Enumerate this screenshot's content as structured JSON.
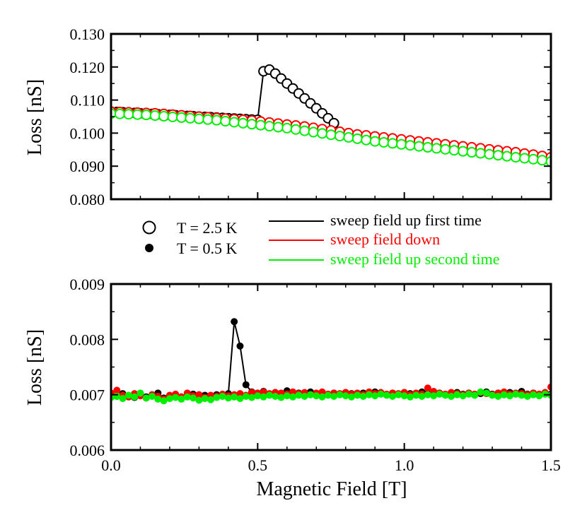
{
  "chart_data": [
    {
      "id": "top",
      "type": "scatter",
      "xlim": [
        0,
        1.5
      ],
      "ylim": [
        0.08,
        0.13
      ],
      "yticks": [
        "0.080",
        "0.090",
        "0.100",
        "0.110",
        "0.120",
        "0.130"
      ],
      "ylabel": "Loss [nS]",
      "xlabel": "",
      "marker": "open-circle",
      "series": [
        {
          "key": "up1",
          "color": "#000000",
          "x": [
            0.0,
            0.02,
            0.04,
            0.06,
            0.08,
            0.1,
            0.12,
            0.14,
            0.16,
            0.18,
            0.2,
            0.22,
            0.24,
            0.26,
            0.28,
            0.3,
            0.32,
            0.34,
            0.36,
            0.38,
            0.4,
            0.42,
            0.44,
            0.46,
            0.48,
            0.5,
            0.52,
            0.54,
            0.56,
            0.58,
            0.6,
            0.62,
            0.64,
            0.66,
            0.68,
            0.7,
            0.72,
            0.74,
            0.76
          ],
          "y": [
            0.1065,
            0.1064,
            0.1063,
            0.1062,
            0.1061,
            0.106,
            0.1059,
            0.1058,
            0.1057,
            0.1056,
            0.1055,
            0.1054,
            0.1053,
            0.1052,
            0.1051,
            0.105,
            0.1049,
            0.1048,
            0.1047,
            0.1046,
            0.1045,
            0.1044,
            0.1043,
            0.1042,
            0.1041,
            0.104,
            0.1187,
            0.1192,
            0.118,
            0.1165,
            0.115,
            0.1135,
            0.112,
            0.1105,
            0.109,
            0.1075,
            0.106,
            0.1045,
            0.103
          ]
        },
        {
          "key": "down",
          "color": "#ff0000",
          "x": [
            0.0,
            0.03,
            0.06,
            0.09,
            0.12,
            0.15,
            0.18,
            0.21,
            0.24,
            0.27,
            0.3,
            0.33,
            0.36,
            0.39,
            0.42,
            0.45,
            0.48,
            0.51,
            0.54,
            0.57,
            0.6,
            0.63,
            0.66,
            0.69,
            0.72,
            0.75,
            0.78,
            0.81,
            0.84,
            0.87,
            0.9,
            0.93,
            0.96,
            0.99,
            1.02,
            1.05,
            1.08,
            1.11,
            1.14,
            1.17,
            1.2,
            1.23,
            1.26,
            1.29,
            1.32,
            1.35,
            1.38,
            1.41,
            1.44,
            1.47,
            1.5
          ],
          "y": [
            0.1065,
            0.1064,
            0.1063,
            0.1062,
            0.1061,
            0.106,
            0.1058,
            0.1056,
            0.1054,
            0.1052,
            0.105,
            0.1048,
            0.1046,
            0.1044,
            0.1042,
            0.104,
            0.1038,
            0.1035,
            0.1032,
            0.1029,
            0.1026,
            0.1023,
            0.102,
            0.1016,
            0.1012,
            0.1008,
            0.1004,
            0.1,
            0.0996,
            0.0993,
            0.099,
            0.0987,
            0.0984,
            0.0981,
            0.0978,
            0.0975,
            0.0972,
            0.0969,
            0.0966,
            0.0963,
            0.096,
            0.0957,
            0.0954,
            0.0951,
            0.0948,
            0.0945,
            0.0942,
            0.0938,
            0.0935,
            0.0931,
            0.0927
          ]
        },
        {
          "key": "up2",
          "color": "#00ee00",
          "x": [
            0.0,
            0.03,
            0.06,
            0.09,
            0.12,
            0.15,
            0.18,
            0.21,
            0.24,
            0.27,
            0.3,
            0.33,
            0.36,
            0.39,
            0.42,
            0.45,
            0.48,
            0.51,
            0.54,
            0.57,
            0.6,
            0.63,
            0.66,
            0.69,
            0.72,
            0.75,
            0.78,
            0.81,
            0.84,
            0.87,
            0.9,
            0.93,
            0.96,
            0.99,
            1.02,
            1.05,
            1.08,
            1.11,
            1.14,
            1.17,
            1.2,
            1.23,
            1.26,
            1.29,
            1.32,
            1.35,
            1.38,
            1.41,
            1.44,
            1.47,
            1.5
          ],
          "y": [
            0.1059,
            0.1058,
            0.1057,
            0.1056,
            0.1055,
            0.1053,
            0.1051,
            0.1049,
            0.1047,
            0.1045,
            0.1043,
            0.1041,
            0.1039,
            0.1036,
            0.1033,
            0.103,
            0.1027,
            0.1024,
            0.1021,
            0.1018,
            0.1015,
            0.1011,
            0.1007,
            0.1003,
            0.0999,
            0.0995,
            0.0991,
            0.0987,
            0.0983,
            0.0979,
            0.0975,
            0.0972,
            0.0969,
            0.0966,
            0.0963,
            0.096,
            0.0957,
            0.0954,
            0.0951,
            0.0948,
            0.0945,
            0.0942,
            0.0939,
            0.0936,
            0.0933,
            0.093,
            0.0927,
            0.0924,
            0.0921,
            0.0918,
            0.0914
          ]
        }
      ]
    },
    {
      "id": "bottom",
      "type": "scatter",
      "xlim": [
        0,
        1.5
      ],
      "ylim": [
        0.006,
        0.009
      ],
      "xticks": [
        "0.0",
        "0.5",
        "1.0",
        "1.5"
      ],
      "yticks": [
        "0.006",
        "0.007",
        "0.008",
        "0.009"
      ],
      "ylabel": "Loss [nS]",
      "xlabel": "Magnetic Field [T]",
      "marker": "filled-circle",
      "series": [
        {
          "key": "up1",
          "color": "#000000",
          "x": [
            0.0,
            0.02,
            0.04,
            0.06,
            0.08,
            0.1,
            0.12,
            0.14,
            0.16,
            0.18,
            0.2,
            0.22,
            0.24,
            0.26,
            0.28,
            0.3,
            0.32,
            0.34,
            0.36,
            0.38,
            0.4,
            0.42,
            0.44,
            0.46,
            0.48,
            0.5,
            0.52,
            0.54,
            0.56,
            0.58,
            0.6,
            0.62,
            0.64,
            0.66,
            0.68,
            0.7,
            0.72,
            0.74,
            0.76,
            0.78,
            0.8,
            0.82,
            0.84,
            0.86,
            0.88,
            0.9,
            0.92,
            0.94,
            0.96,
            0.98,
            1.0,
            1.02,
            1.04,
            1.06,
            1.08,
            1.1,
            1.12,
            1.14,
            1.16,
            1.18,
            1.2,
            1.22,
            1.24,
            1.26,
            1.28,
            1.3,
            1.32,
            1.34,
            1.36,
            1.38,
            1.4,
            1.42,
            1.44,
            1.46,
            1.48,
            1.5
          ],
          "y": [
            0.007,
            0.00697,
            0.00702,
            0.00698,
            0.00695,
            0.00701,
            0.00696,
            0.00699,
            0.00703,
            0.00694,
            0.00697,
            0.007,
            0.00696,
            0.00698,
            0.00701,
            0.00695,
            0.00699,
            0.00697,
            0.007,
            0.00698,
            0.00702,
            0.00832,
            0.00788,
            0.00718,
            0.00705,
            0.00703,
            0.00706,
            0.00701,
            0.00704,
            0.00702,
            0.00707,
            0.007,
            0.00703,
            0.00701,
            0.00705,
            0.00702,
            0.00704,
            0.007,
            0.00703,
            0.00701,
            0.00704,
            0.00702,
            0.007,
            0.00703,
            0.00701,
            0.00705,
            0.00702,
            0.007,
            0.00703,
            0.00701,
            0.00704,
            0.00702,
            0.007,
            0.00705,
            0.00702,
            0.00701,
            0.00703,
            0.007,
            0.00702,
            0.00704,
            0.00701,
            0.00703,
            0.007,
            0.00702,
            0.00705,
            0.00701,
            0.00703,
            0.007,
            0.00704,
            0.00702,
            0.00706,
            0.00701,
            0.00703,
            0.007,
            0.00702,
            0.00701
          ]
        },
        {
          "key": "down",
          "color": "#ff0000",
          "x": [
            0.0,
            0.02,
            0.04,
            0.06,
            0.08,
            0.1,
            0.12,
            0.14,
            0.16,
            0.18,
            0.2,
            0.22,
            0.24,
            0.26,
            0.28,
            0.3,
            0.32,
            0.34,
            0.36,
            0.38,
            0.4,
            0.42,
            0.44,
            0.46,
            0.48,
            0.5,
            0.52,
            0.54,
            0.56,
            0.58,
            0.6,
            0.62,
            0.64,
            0.66,
            0.68,
            0.7,
            0.72,
            0.74,
            0.76,
            0.78,
            0.8,
            0.82,
            0.84,
            0.86,
            0.88,
            0.9,
            0.92,
            0.94,
            0.96,
            0.98,
            1.0,
            1.02,
            1.04,
            1.06,
            1.08,
            1.1,
            1.12,
            1.14,
            1.16,
            1.18,
            1.2,
            1.22,
            1.24,
            1.26,
            1.28,
            1.3,
            1.32,
            1.34,
            1.36,
            1.38,
            1.4,
            1.42,
            1.44,
            1.46,
            1.48,
            1.5
          ],
          "y": [
            0.00703,
            0.00708,
            0.00699,
            0.00696,
            0.00702,
            0.00698,
            0.00694,
            0.007,
            0.00697,
            0.00692,
            0.00699,
            0.00701,
            0.00696,
            0.00703,
            0.00698,
            0.007,
            0.00695,
            0.00699,
            0.00697,
            0.00701,
            0.00698,
            0.007,
            0.00702,
            0.00699,
            0.00704,
            0.00703,
            0.00705,
            0.00702,
            0.00704,
            0.00703,
            0.00701,
            0.00705,
            0.00702,
            0.00704,
            0.007,
            0.00703,
            0.00705,
            0.00701,
            0.00703,
            0.00702,
            0.00704,
            0.00701,
            0.00703,
            0.007,
            0.00705,
            0.00702,
            0.00704,
            0.00701,
            0.00703,
            0.00702,
            0.00704,
            0.007,
            0.00703,
            0.00701,
            0.00712,
            0.00706,
            0.00703,
            0.00701,
            0.00704,
            0.00702,
            0.007,
            0.00703,
            0.00701,
            0.00704,
            0.00702,
            0.007,
            0.00703,
            0.00705,
            0.00701,
            0.00703,
            0.00702,
            0.007,
            0.00703,
            0.00701,
            0.00704,
            0.00714
          ]
        },
        {
          "key": "up2",
          "color": "#00ee00",
          "x": [
            0.0,
            0.02,
            0.04,
            0.06,
            0.08,
            0.1,
            0.12,
            0.14,
            0.16,
            0.18,
            0.2,
            0.22,
            0.24,
            0.26,
            0.28,
            0.3,
            0.32,
            0.34,
            0.36,
            0.38,
            0.4,
            0.42,
            0.44,
            0.46,
            0.48,
            0.5,
            0.52,
            0.54,
            0.56,
            0.58,
            0.6,
            0.62,
            0.64,
            0.66,
            0.68,
            0.7,
            0.72,
            0.74,
            0.76,
            0.78,
            0.8,
            0.82,
            0.84,
            0.86,
            0.88,
            0.9,
            0.92,
            0.94,
            0.96,
            0.98,
            1.0,
            1.02,
            1.04,
            1.06,
            1.08,
            1.1,
            1.12,
            1.14,
            1.16,
            1.18,
            1.2,
            1.22,
            1.24,
            1.26,
            1.28,
            1.3,
            1.32,
            1.34,
            1.36,
            1.38,
            1.4,
            1.42,
            1.44,
            1.46,
            1.48,
            1.5
          ],
          "y": [
            0.00695,
            0.00697,
            0.00693,
            0.00699,
            0.00696,
            0.00703,
            0.00694,
            0.00697,
            0.00692,
            0.00689,
            0.00693,
            0.00695,
            0.00692,
            0.00696,
            0.00694,
            0.0069,
            0.00693,
            0.00691,
            0.00695,
            0.00697,
            0.00694,
            0.00696,
            0.00693,
            0.00697,
            0.00695,
            0.00698,
            0.00696,
            0.00699,
            0.00697,
            0.00695,
            0.00698,
            0.00696,
            0.00699,
            0.00697,
            0.007,
            0.00698,
            0.00696,
            0.00699,
            0.00697,
            0.007,
            0.00698,
            0.00696,
            0.00699,
            0.00697,
            0.007,
            0.00698,
            0.00701,
            0.00699,
            0.00697,
            0.007,
            0.00698,
            0.00696,
            0.00699,
            0.00697,
            0.007,
            0.00698,
            0.00701,
            0.00699,
            0.00697,
            0.007,
            0.00698,
            0.00701,
            0.00699,
            0.00705,
            0.00703,
            0.00699,
            0.00697,
            0.007,
            0.00698,
            0.00701,
            0.00699,
            0.00697,
            0.007,
            0.00698,
            0.00701,
            0.00699
          ]
        }
      ]
    }
  ],
  "legend": {
    "markers": [
      {
        "label": "T = 2.5 K",
        "marker": "open-circle"
      },
      {
        "label": "T = 0.5 K",
        "marker": "filled-circle"
      }
    ],
    "lines": [
      {
        "label": "sweep field up first time",
        "color": "#000000"
      },
      {
        "label": "sweep field down",
        "color": "#ff0000"
      },
      {
        "label": "sweep field up second time",
        "color": "#00ee00"
      }
    ]
  }
}
